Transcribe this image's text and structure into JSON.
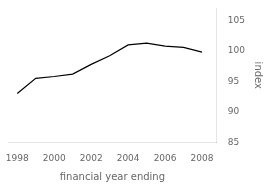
{
  "chart_data": {
    "type": "line",
    "x": [
      1998,
      1999,
      2000,
      2001,
      2002,
      2003,
      2004,
      2005,
      2006,
      2007,
      2008
    ],
    "values": [
      93.0,
      95.5,
      95.8,
      96.2,
      97.8,
      99.2,
      101.0,
      101.3,
      100.8,
      100.6,
      99.8
    ],
    "color": "#000000",
    "xlabel": "financial year ending",
    "ylabel": "index",
    "xlim": [
      1997.5,
      2008.8
    ],
    "ylim": [
      85,
      107
    ],
    "xticks": [
      1998,
      2000,
      2002,
      2004,
      2006,
      2008
    ],
    "yticks": [
      85,
      90,
      95,
      100,
      105
    ],
    "grid": false
  }
}
